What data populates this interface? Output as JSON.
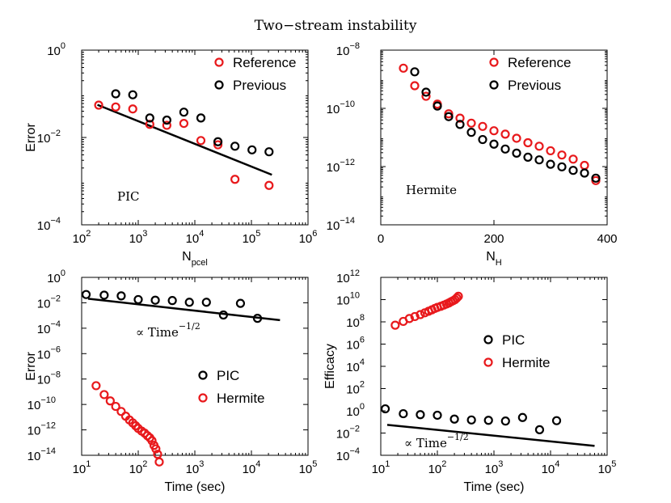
{
  "figure_title": "Two−stream instability",
  "chart_data": [
    {
      "id": "p1",
      "type": "scatter",
      "xscale": "log",
      "yscale": "log",
      "xlim": [
        100,
        1000000
      ],
      "ylim": [
        0.0001,
        1
      ],
      "xlabel": "N",
      "xlabel_sub": "pcel",
      "ylabel": "Error",
      "xticks": [
        100,
        1000,
        10000,
        100000,
        1000000
      ],
      "yticks": [
        0.0001,
        0.01,
        1
      ],
      "xtick_labels": [
        [
          "10",
          "2"
        ],
        [
          "10",
          "3"
        ],
        [
          "10",
          "4"
        ],
        [
          "10",
          "5"
        ],
        [
          "10",
          "6"
        ]
      ],
      "ytick_labels": [
        [
          "10",
          "−4"
        ],
        [
          "10",
          "−2"
        ],
        [
          "10",
          "0"
        ]
      ],
      "legend": [
        "Reference",
        "Previous"
      ],
      "legend_position": "top-right",
      "annotation": "PIC",
      "series": [
        {
          "name": "Reference",
          "color": "#e8191c",
          "x": [
            200,
            400,
            800,
            1600,
            3200,
            6400,
            12800,
            25600,
            51200,
            204800
          ],
          "y": [
            0.055,
            0.05,
            0.045,
            0.02,
            0.019,
            0.021,
            0.0085,
            0.0068,
            0.0011,
            0.0008
          ]
        },
        {
          "name": "Previous",
          "color": "#000000",
          "x": [
            400,
            800,
            1600,
            3200,
            6400,
            12800,
            25600,
            51200,
            102400,
            204800
          ],
          "y": [
            0.1,
            0.095,
            0.028,
            0.025,
            0.038,
            0.028,
            0.008,
            0.0063,
            0.0052,
            0.0047
          ]
        }
      ],
      "fit_line": {
        "x": [
          190,
          230000
        ],
        "y": [
          0.056,
          0.0014
        ]
      }
    },
    {
      "id": "p2",
      "type": "scatter",
      "xscale": "linear",
      "yscale": "log",
      "xlim": [
        0,
        400
      ],
      "ylim": [
        1e-14,
        1e-08
      ],
      "xlabel": "N",
      "xlabel_sub": "H",
      "ylabel": "",
      "xticks": [
        0,
        200,
        400
      ],
      "yticks": [
        1e-14,
        1e-12,
        1e-10,
        1e-08
      ],
      "xtick_labels": [
        [
          "0",
          ""
        ],
        [
          "200",
          ""
        ],
        [
          "400",
          ""
        ]
      ],
      "ytick_labels": [
        [
          "10",
          "−14"
        ],
        [
          "10",
          "−12"
        ],
        [
          "10",
          "−10"
        ],
        [
          "10",
          "−8"
        ]
      ],
      "legend": [
        "Reference",
        "Previous"
      ],
      "legend_position": "top-right",
      "annotation": "Hermite",
      "series": [
        {
          "name": "Reference",
          "color": "#e8191c",
          "x": [
            40,
            60,
            80,
            100,
            120,
            140,
            160,
            180,
            200,
            220,
            240,
            260,
            280,
            300,
            320,
            340,
            360,
            380
          ],
          "y": [
            2.4e-09,
            6e-10,
            2.6e-10,
            1.4e-10,
            6.5e-11,
            4.6e-11,
            3.1e-11,
            2.4e-11,
            1.7e-11,
            1.3e-11,
            9.4e-12,
            6.6e-12,
            5e-12,
            3.5e-12,
            2.5e-12,
            1.8e-12,
            1.1e-12,
            3.3e-13
          ]
        },
        {
          "name": "Previous",
          "color": "#000000",
          "x": [
            60,
            80,
            100,
            120,
            140,
            160,
            180,
            200,
            220,
            240,
            260,
            280,
            300,
            320,
            340,
            360,
            380
          ],
          "y": [
            1.8e-09,
            3.6e-10,
            1.2e-10,
            5.2e-11,
            2.8e-11,
            1.5e-11,
            8.5e-12,
            5.9e-12,
            4e-12,
            2.9e-12,
            2.1e-12,
            1.7e-12,
            1.2e-12,
            9.8e-13,
            7.4e-13,
            6e-13,
            4e-13
          ]
        }
      ]
    },
    {
      "id": "p3",
      "type": "scatter",
      "xscale": "log",
      "yscale": "log",
      "xlim": [
        10,
        100000
      ],
      "ylim": [
        1e-14,
        1
      ],
      "xlabel": "Time (sec)",
      "ylabel": "Error",
      "xticks": [
        10,
        100,
        1000,
        10000,
        100000
      ],
      "yticks": [
        1e-14,
        1e-12,
        1e-10,
        1e-08,
        1e-06,
        0.0001,
        0.01,
        1
      ],
      "xtick_labels": [
        [
          "10",
          "1"
        ],
        [
          "10",
          "2"
        ],
        [
          "10",
          "3"
        ],
        [
          "10",
          "4"
        ],
        [
          "10",
          "5"
        ]
      ],
      "ytick_labels": [
        [
          "10",
          "−14"
        ],
        [
          "10",
          "−12"
        ],
        [
          "10",
          "−10"
        ],
        [
          "10",
          "−8"
        ],
        [
          "10",
          "−6"
        ],
        [
          "10",
          "−4"
        ],
        [
          "10",
          "−2"
        ],
        [
          "10",
          "0"
        ]
      ],
      "legend": [
        "PIC",
        "Hermite"
      ],
      "legend_position": "lower-right",
      "annotation": "∝ Time",
      "annotation_exp": "−1/2",
      "series": [
        {
          "name": "PIC",
          "color": "#000000",
          "x": [
            12,
            25,
            50,
            100,
            200,
            400,
            800,
            1600,
            3200,
            6400,
            12800
          ],
          "y": [
            0.045,
            0.04,
            0.035,
            0.018,
            0.016,
            0.015,
            0.011,
            0.011,
            0.0011,
            0.009,
            0.0006
          ]
        },
        {
          "name": "Hermite",
          "color": "#e8191c",
          "x": [
            18,
            25,
            32,
            40,
            50,
            60,
            70,
            80,
            90,
            100,
            115,
            130,
            145,
            160,
            175,
            190,
            205,
            220,
            235
          ],
          "y": [
            3e-09,
            6e-10,
            1.9e-10,
            7e-11,
            2.8e-11,
            1.2e-11,
            6e-12,
            3.5e-12,
            2.1e-12,
            1.3e-12,
            8e-13,
            5.5e-13,
            3.5e-13,
            2.4e-13,
            1.4e-13,
            6e-14,
            3.2e-14,
            1.2e-14,
            3e-15
          ]
        }
      ],
      "fit_line": {
        "x": [
          13,
          32000
        ],
        "y": [
          0.021,
          0.00043
        ]
      }
    },
    {
      "id": "p4",
      "type": "scatter",
      "xscale": "log",
      "yscale": "log",
      "xlim": [
        10,
        100000
      ],
      "ylim": [
        0.0001,
        1000000000000.0
      ],
      "xlabel": "Time (sec)",
      "ylabel": "Efficacy",
      "xticks": [
        10,
        100,
        1000,
        10000,
        100000
      ],
      "yticks": [
        0.0001,
        0.01,
        1,
        100,
        10000,
        1000000.0,
        100000000.0,
        10000000000.0,
        1000000000000.0
      ],
      "xtick_labels": [
        [
          "10",
          "1"
        ],
        [
          "10",
          "2"
        ],
        [
          "10",
          "3"
        ],
        [
          "10",
          "4"
        ],
        [
          "10",
          "5"
        ]
      ],
      "ytick_labels": [
        [
          "10",
          "−4"
        ],
        [
          "10",
          "−2"
        ],
        [
          "10",
          "0"
        ],
        [
          "10",
          "2"
        ],
        [
          "10",
          "4"
        ],
        [
          "10",
          "6"
        ],
        [
          "10",
          "8"
        ],
        [
          "10",
          "10"
        ],
        [
          "10",
          "12"
        ]
      ],
      "legend": [
        "PIC",
        "Hermite"
      ],
      "legend_position": "center-right",
      "annotation": "∝ Time",
      "annotation_exp": "−1/2",
      "series": [
        {
          "name": "PIC",
          "color": "#000000",
          "x": [
            12,
            25,
            50,
            100,
            200,
            400,
            800,
            1600,
            3200,
            6400,
            12800
          ],
          "y": [
            1.5,
            0.55,
            0.45,
            0.4,
            0.18,
            0.15,
            0.14,
            0.12,
            0.25,
            0.02,
            0.13
          ]
        },
        {
          "name": "Hermite",
          "color": "#e8191c",
          "x": [
            18,
            25,
            32,
            40,
            50,
            60,
            70,
            80,
            90,
            100,
            115,
            130,
            145,
            160,
            175,
            190,
            205,
            220,
            235
          ],
          "y": [
            50000000.0,
            110000000.0,
            200000000.0,
            300000000.0,
            450000000.0,
            650000000.0,
            900000000.0,
            1200000000.0,
            1600000000.0,
            2000000000.0,
            2500000000.0,
            3200000000.0,
            4000000000.0,
            5000000000.0,
            6500000000.0,
            8000000000.0,
            10000000000.0,
            14000000000.0,
            20000000000.0
          ]
        }
      ],
      "fit_line": {
        "x": [
          13,
          60000
        ],
        "y": [
          0.055,
          0.0007
        ]
      }
    }
  ]
}
